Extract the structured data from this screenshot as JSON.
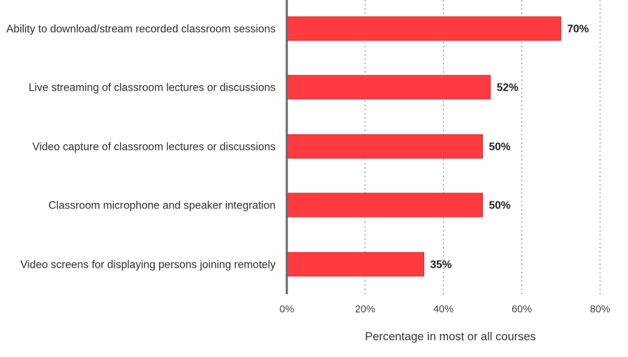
{
  "chart_data": {
    "type": "bar",
    "orientation": "horizontal",
    "categories": [
      "Ability to download/stream recorded classroom sessions",
      "Live streaming of classroom lectures or discussions",
      "Video capture of classroom lectures or discussions",
      "Classroom microphone and speaker integration",
      "Video screens for displaying persons joining remotely"
    ],
    "values": [
      70,
      52,
      50,
      50,
      35
    ],
    "value_labels": [
      "70%",
      "52%",
      "50%",
      "50%",
      "35%"
    ],
    "title": "",
    "xlabel": "Percentage in most or all courses",
    "ylabel": "",
    "xlim": [
      0,
      80
    ],
    "x_ticks": [
      0,
      20,
      40,
      60,
      80
    ],
    "x_tick_labels": [
      "0%",
      "20%",
      "40%",
      "60%",
      "80%"
    ],
    "grid": "vertical dotted",
    "colors": {
      "bar": "#ff3b3f",
      "bar_border": "#d42c31",
      "axis": "#666666",
      "grid": "#8c8c8c"
    }
  }
}
